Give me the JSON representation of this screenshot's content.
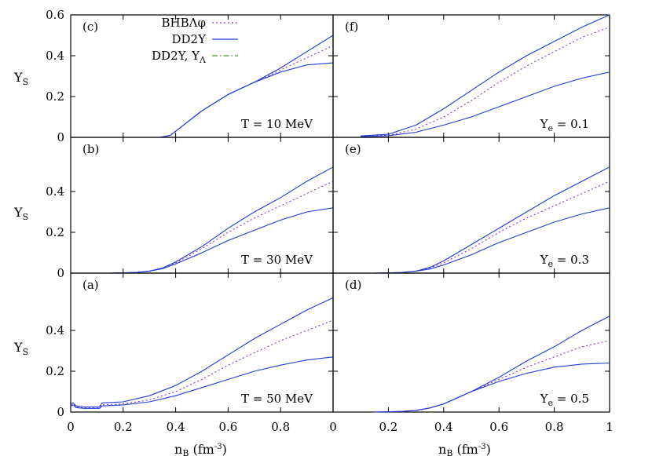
{
  "chart_data": {
    "type": "line",
    "layout": "3 rows x 2 columns, shared axes",
    "xlabel": "n",
    "xlabel_sub": "B",
    "xlabel_unit": "(fm",
    "xlabel_unit_sup": "-3",
    "xlabel_unit_close": ")",
    "ylabel": "Y",
    "ylabel_sub": "S",
    "xlim": [
      0,
      1
    ],
    "ylim": [
      0,
      0.6
    ],
    "x_ticks": [
      "0",
      "0.2",
      "0.4",
      "0.6",
      "0.8",
      "1"
    ],
    "y_ticks_top": [
      "0",
      "0.2",
      "0.4",
      "0.6"
    ],
    "y_ticks_lower": [
      "0",
      "0.2",
      "0.4"
    ],
    "legend": [
      {
        "name": "BHBΛφ",
        "color": "#8b2fc9",
        "style": "dotted"
      },
      {
        "name": "DD2Y",
        "color": "#1f3bd6",
        "style": "solid"
      },
      {
        "name": "DD2Y, Y",
        "name_sub": "Λ",
        "color": "#3a9a24",
        "style": "dash-dot"
      }
    ],
    "panels": [
      {
        "id": "c",
        "label": "(c)",
        "row": 0,
        "col": 0,
        "condition": "T = 10 MeV",
        "series": [
          {
            "name": "BHBΛφ",
            "x": [
              0.34,
              0.38,
              0.42,
              0.5,
              0.6,
              0.7,
              0.8,
              0.9,
              1.0
            ],
            "y": [
              0,
              0.01,
              0.05,
              0.13,
              0.21,
              0.27,
              0.33,
              0.39,
              0.45
            ]
          },
          {
            "name": "DD2Y",
            "x": [
              0.34,
              0.38,
              0.42,
              0.5,
              0.6,
              0.7,
              0.8,
              0.9,
              1.0
            ],
            "y": [
              0,
              0.01,
              0.05,
              0.13,
              0.21,
              0.27,
              0.34,
              0.42,
              0.5
            ]
          },
          {
            "name": "DD2Y, YΛ",
            "x": [
              0.34,
              0.38,
              0.42,
              0.5,
              0.6,
              0.7,
              0.8,
              0.9,
              1.0
            ],
            "y": [
              0,
              0.01,
              0.05,
              0.13,
              0.21,
              0.27,
              0.32,
              0.355,
              0.365
            ]
          }
        ]
      },
      {
        "id": "b",
        "label": "(b)",
        "row": 1,
        "col": 0,
        "condition": "T = 30 MeV",
        "series": [
          {
            "name": "BHBΛφ",
            "x": [
              0.15,
              0.25,
              0.3,
              0.35,
              0.4,
              0.5,
              0.6,
              0.7,
              0.8,
              0.9,
              1.0
            ],
            "y": [
              0,
              0.003,
              0.01,
              0.025,
              0.05,
              0.12,
              0.2,
              0.27,
              0.33,
              0.39,
              0.45
            ]
          },
          {
            "name": "DD2Y",
            "x": [
              0.15,
              0.25,
              0.3,
              0.35,
              0.4,
              0.5,
              0.6,
              0.7,
              0.8,
              0.9,
              1.0
            ],
            "y": [
              0,
              0.003,
              0.01,
              0.025,
              0.055,
              0.13,
              0.22,
              0.3,
              0.37,
              0.45,
              0.52
            ]
          },
          {
            "name": "DD2Y, YΛ",
            "x": [
              0.15,
              0.25,
              0.3,
              0.35,
              0.4,
              0.5,
              0.6,
              0.7,
              0.8,
              0.9,
              1.0
            ],
            "y": [
              0,
              0.003,
              0.01,
              0.022,
              0.045,
              0.1,
              0.16,
              0.21,
              0.26,
              0.3,
              0.32
            ]
          }
        ]
      },
      {
        "id": "a",
        "label": "(a)",
        "row": 2,
        "col": 0,
        "condition": "T = 50 MeV",
        "series": [
          {
            "name": "BHBΛφ",
            "x": [
              0,
              0.01,
              0.02,
              0.05,
              0.1,
              0.11,
              0.12,
              0.2,
              0.3,
              0.4,
              0.5,
              0.6,
              0.7,
              0.8,
              0.9,
              1.0
            ],
            "y": [
              0.035,
              0.04,
              0.025,
              0.02,
              0.02,
              0.02,
              0.035,
              0.04,
              0.06,
              0.1,
              0.16,
              0.23,
              0.29,
              0.35,
              0.4,
              0.45
            ]
          },
          {
            "name": "DD2Y",
            "x": [
              0,
              0.01,
              0.02,
              0.05,
              0.1,
              0.11,
              0.12,
              0.2,
              0.3,
              0.4,
              0.5,
              0.6,
              0.7,
              0.8,
              0.9,
              1.0
            ],
            "y": [
              0.04,
              0.045,
              0.03,
              0.025,
              0.025,
              0.025,
              0.045,
              0.05,
              0.08,
              0.13,
              0.2,
              0.28,
              0.36,
              0.43,
              0.5,
              0.56
            ]
          },
          {
            "name": "DD2Y, YΛ",
            "x": [
              0,
              0.01,
              0.02,
              0.05,
              0.1,
              0.11,
              0.12,
              0.2,
              0.3,
              0.4,
              0.5,
              0.6,
              0.7,
              0.8,
              0.9,
              1.0
            ],
            "y": [
              0.03,
              0.035,
              0.022,
              0.018,
              0.018,
              0.018,
              0.03,
              0.035,
              0.05,
              0.08,
              0.12,
              0.16,
              0.2,
              0.23,
              0.255,
              0.27
            ]
          }
        ]
      },
      {
        "id": "f",
        "label": "(f)",
        "row": 0,
        "col": 1,
        "condition": "Y",
        "condition_sub": "e",
        "condition_value": " = 0.1",
        "series": [
          {
            "name": "BHBΛφ",
            "x": [
              0.1,
              0.2,
              0.3,
              0.4,
              0.5,
              0.6,
              0.7,
              0.8,
              0.9,
              1.0
            ],
            "y": [
              0.005,
              0.01,
              0.04,
              0.1,
              0.18,
              0.27,
              0.35,
              0.42,
              0.49,
              0.54
            ]
          },
          {
            "name": "DD2Y",
            "x": [
              0.1,
              0.2,
              0.3,
              0.4,
              0.5,
              0.6,
              0.7,
              0.8,
              0.9,
              1.0
            ],
            "y": [
              0.007,
              0.015,
              0.06,
              0.14,
              0.23,
              0.32,
              0.4,
              0.47,
              0.54,
              0.6
            ]
          },
          {
            "name": "DD2Y, YΛ",
            "x": [
              0.1,
              0.2,
              0.3,
              0.4,
              0.5,
              0.6,
              0.7,
              0.8,
              0.9,
              1.0
            ],
            "y": [
              0.003,
              0.008,
              0.025,
              0.06,
              0.1,
              0.15,
              0.2,
              0.25,
              0.29,
              0.32
            ]
          }
        ]
      },
      {
        "id": "e",
        "label": "(e)",
        "row": 1,
        "col": 1,
        "condition": "Y",
        "condition_sub": "e",
        "condition_value": " = 0.3",
        "series": [
          {
            "name": "BHBΛφ",
            "x": [
              0.15,
              0.25,
              0.3,
              0.35,
              0.4,
              0.5,
              0.6,
              0.7,
              0.8,
              0.9,
              1.0
            ],
            "y": [
              0,
              0.003,
              0.01,
              0.025,
              0.05,
              0.12,
              0.2,
              0.27,
              0.33,
              0.39,
              0.45
            ]
          },
          {
            "name": "DD2Y",
            "x": [
              0.15,
              0.25,
              0.3,
              0.35,
              0.4,
              0.5,
              0.6,
              0.7,
              0.8,
              0.9,
              1.0
            ],
            "y": [
              0,
              0.003,
              0.01,
              0.028,
              0.06,
              0.14,
              0.22,
              0.3,
              0.38,
              0.45,
              0.52
            ]
          },
          {
            "name": "DD2Y, YΛ",
            "x": [
              0.15,
              0.25,
              0.3,
              0.35,
              0.4,
              0.5,
              0.6,
              0.7,
              0.8,
              0.9,
              1.0
            ],
            "y": [
              0,
              0.003,
              0.01,
              0.02,
              0.04,
              0.09,
              0.15,
              0.2,
              0.25,
              0.29,
              0.32
            ]
          }
        ]
      },
      {
        "id": "d",
        "label": "(d)",
        "row": 2,
        "col": 1,
        "condition": "Y",
        "condition_sub": "e",
        "condition_value": " = 0.5",
        "series": [
          {
            "name": "BHBΛφ",
            "x": [
              0.15,
              0.25,
              0.3,
              0.35,
              0.4,
              0.5,
              0.6,
              0.7,
              0.8,
              0.9,
              1.0
            ],
            "y": [
              0,
              0.003,
              0.008,
              0.02,
              0.04,
              0.1,
              0.16,
              0.22,
              0.27,
              0.32,
              0.35
            ]
          },
          {
            "name": "DD2Y",
            "x": [
              0.15,
              0.25,
              0.3,
              0.35,
              0.4,
              0.5,
              0.6,
              0.7,
              0.8,
              0.9,
              1.0
            ],
            "y": [
              0,
              0.003,
              0.008,
              0.02,
              0.04,
              0.1,
              0.17,
              0.25,
              0.32,
              0.4,
              0.47
            ]
          },
          {
            "name": "DD2Y, YΛ",
            "x": [
              0.15,
              0.25,
              0.3,
              0.35,
              0.4,
              0.5,
              0.6,
              0.7,
              0.8,
              0.9,
              1.0
            ],
            "y": [
              0,
              0.003,
              0.008,
              0.02,
              0.04,
              0.1,
              0.15,
              0.19,
              0.22,
              0.235,
              0.24
            ]
          }
        ]
      }
    ]
  }
}
